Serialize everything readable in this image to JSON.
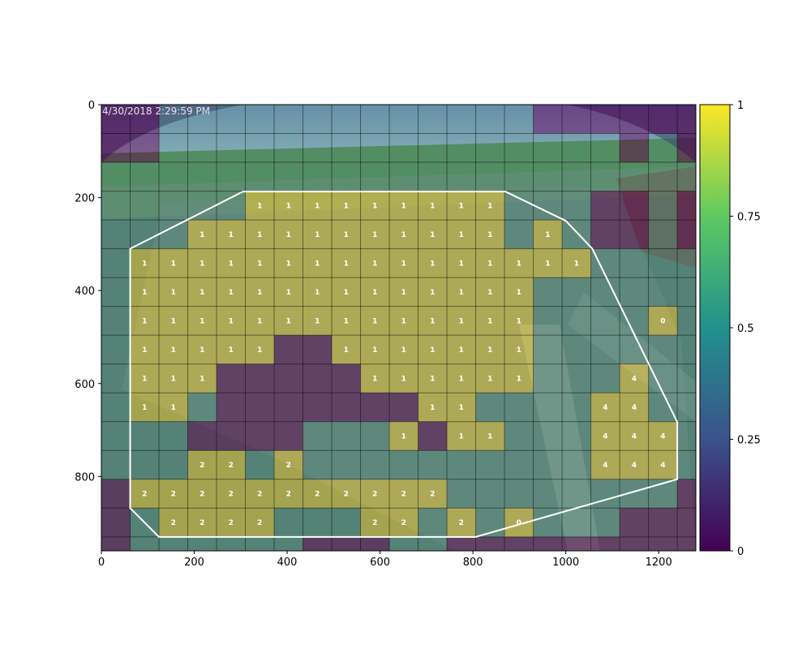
{
  "overlay_text": {
    "timestamp": "4/30/2018 2:29:59 PM"
  },
  "colors": {
    "viridis_low": "#440154",
    "viridis_mid": "#21918c",
    "viridis_high": "#fde725",
    "roi_outline": "#ffffff",
    "grid_line": "#000000",
    "cell_label": "#ffffff"
  },
  "chart_data": {
    "type": "heatmap",
    "description_source": "grid heatmap overlaid on traffic camera image",
    "title": "",
    "xlabel": "",
    "ylabel": "",
    "xlim": [
      0,
      1280
    ],
    "ylim": [
      960,
      0
    ],
    "x_ticks": [
      0,
      200,
      400,
      600,
      800,
      1000,
      1200
    ],
    "y_ticks": [
      0,
      200,
      400,
      600,
      800
    ],
    "grid": {
      "cell_width": 62,
      "cell_height": 62,
      "columns": 21,
      "rows": 16
    },
    "colormap": "viridis",
    "colorbar": {
      "vmin": 0,
      "vmax": 1,
      "ticks": [
        0,
        0.25,
        0.5,
        0.75,
        1
      ],
      "tick_labels": [
        "0",
        "0.25",
        "0.5",
        "0.75",
        "1"
      ]
    },
    "roi_polygon": [
      [
        62,
        310
      ],
      [
        305,
        187
      ],
      [
        870,
        187
      ],
      [
        1000,
        250
      ],
      [
        1057,
        310
      ],
      [
        1240,
        683
      ],
      [
        1240,
        806
      ],
      [
        806,
        930
      ],
      [
        124,
        930
      ],
      [
        62,
        868
      ]
    ],
    "cell_labels": [
      {
        "x": 341,
        "y": 217,
        "text": "1"
      },
      {
        "x": 403,
        "y": 217,
        "text": "1"
      },
      {
        "x": 465,
        "y": 217,
        "text": "1"
      },
      {
        "x": 527,
        "y": 217,
        "text": "1"
      },
      {
        "x": 589,
        "y": 217,
        "text": "1"
      },
      {
        "x": 651,
        "y": 217,
        "text": "1"
      },
      {
        "x": 713,
        "y": 217,
        "text": "1"
      },
      {
        "x": 775,
        "y": 217,
        "text": "1"
      },
      {
        "x": 837,
        "y": 217,
        "text": "1"
      },
      {
        "x": 217,
        "y": 279,
        "text": "1"
      },
      {
        "x": 279,
        "y": 279,
        "text": "1"
      },
      {
        "x": 341,
        "y": 279,
        "text": "1"
      },
      {
        "x": 403,
        "y": 279,
        "text": "1"
      },
      {
        "x": 465,
        "y": 279,
        "text": "1"
      },
      {
        "x": 527,
        "y": 279,
        "text": "1"
      },
      {
        "x": 589,
        "y": 279,
        "text": "1"
      },
      {
        "x": 651,
        "y": 279,
        "text": "1"
      },
      {
        "x": 713,
        "y": 279,
        "text": "1"
      },
      {
        "x": 775,
        "y": 279,
        "text": "1"
      },
      {
        "x": 837,
        "y": 279,
        "text": "1"
      },
      {
        "x": 961,
        "y": 279,
        "text": "1"
      },
      {
        "x": 93,
        "y": 341,
        "text": "1"
      },
      {
        "x": 155,
        "y": 341,
        "text": "1"
      },
      {
        "x": 217,
        "y": 341,
        "text": "1"
      },
      {
        "x": 279,
        "y": 341,
        "text": "1"
      },
      {
        "x": 341,
        "y": 341,
        "text": "1"
      },
      {
        "x": 403,
        "y": 341,
        "text": "1"
      },
      {
        "x": 465,
        "y": 341,
        "text": "1"
      },
      {
        "x": 527,
        "y": 341,
        "text": "1"
      },
      {
        "x": 589,
        "y": 341,
        "text": "1"
      },
      {
        "x": 651,
        "y": 341,
        "text": "1"
      },
      {
        "x": 713,
        "y": 341,
        "text": "1"
      },
      {
        "x": 775,
        "y": 341,
        "text": "1"
      },
      {
        "x": 837,
        "y": 341,
        "text": "1"
      },
      {
        "x": 899,
        "y": 341,
        "text": "1"
      },
      {
        "x": 961,
        "y": 341,
        "text": "1"
      },
      {
        "x": 1023,
        "y": 341,
        "text": "1"
      },
      {
        "x": 93,
        "y": 403,
        "text": "1"
      },
      {
        "x": 155,
        "y": 403,
        "text": "1"
      },
      {
        "x": 217,
        "y": 403,
        "text": "1"
      },
      {
        "x": 279,
        "y": 403,
        "text": "1"
      },
      {
        "x": 341,
        "y": 403,
        "text": "1"
      },
      {
        "x": 403,
        "y": 403,
        "text": "1"
      },
      {
        "x": 465,
        "y": 403,
        "text": "1"
      },
      {
        "x": 527,
        "y": 403,
        "text": "1"
      },
      {
        "x": 589,
        "y": 403,
        "text": "1"
      },
      {
        "x": 651,
        "y": 403,
        "text": "1"
      },
      {
        "x": 713,
        "y": 403,
        "text": "1"
      },
      {
        "x": 775,
        "y": 403,
        "text": "1"
      },
      {
        "x": 837,
        "y": 403,
        "text": "1"
      },
      {
        "x": 899,
        "y": 403,
        "text": "1"
      },
      {
        "x": 93,
        "y": 465,
        "text": "1"
      },
      {
        "x": 155,
        "y": 465,
        "text": "1"
      },
      {
        "x": 217,
        "y": 465,
        "text": "1"
      },
      {
        "x": 279,
        "y": 465,
        "text": "1"
      },
      {
        "x": 341,
        "y": 465,
        "text": "1"
      },
      {
        "x": 403,
        "y": 465,
        "text": "1"
      },
      {
        "x": 465,
        "y": 465,
        "text": "1"
      },
      {
        "x": 527,
        "y": 465,
        "text": "1"
      },
      {
        "x": 589,
        "y": 465,
        "text": "1"
      },
      {
        "x": 651,
        "y": 465,
        "text": "1"
      },
      {
        "x": 713,
        "y": 465,
        "text": "1"
      },
      {
        "x": 775,
        "y": 465,
        "text": "1"
      },
      {
        "x": 837,
        "y": 465,
        "text": "1"
      },
      {
        "x": 899,
        "y": 465,
        "text": "1"
      },
      {
        "x": 1209,
        "y": 465,
        "text": "0"
      },
      {
        "x": 93,
        "y": 527,
        "text": "1"
      },
      {
        "x": 155,
        "y": 527,
        "text": "1"
      },
      {
        "x": 217,
        "y": 527,
        "text": "1"
      },
      {
        "x": 279,
        "y": 527,
        "text": "1"
      },
      {
        "x": 341,
        "y": 527,
        "text": "1"
      },
      {
        "x": 527,
        "y": 527,
        "text": "1"
      },
      {
        "x": 589,
        "y": 527,
        "text": "1"
      },
      {
        "x": 651,
        "y": 527,
        "text": "1"
      },
      {
        "x": 713,
        "y": 527,
        "text": "1"
      },
      {
        "x": 775,
        "y": 527,
        "text": "1"
      },
      {
        "x": 837,
        "y": 527,
        "text": "1"
      },
      {
        "x": 899,
        "y": 527,
        "text": "1"
      },
      {
        "x": 93,
        "y": 589,
        "text": "1"
      },
      {
        "x": 155,
        "y": 589,
        "text": "1"
      },
      {
        "x": 217,
        "y": 589,
        "text": "1"
      },
      {
        "x": 589,
        "y": 589,
        "text": "1"
      },
      {
        "x": 651,
        "y": 589,
        "text": "1"
      },
      {
        "x": 713,
        "y": 589,
        "text": "1"
      },
      {
        "x": 775,
        "y": 589,
        "text": "1"
      },
      {
        "x": 837,
        "y": 589,
        "text": "1"
      },
      {
        "x": 899,
        "y": 589,
        "text": "1"
      },
      {
        "x": 1147,
        "y": 589,
        "text": "4"
      },
      {
        "x": 93,
        "y": 651,
        "text": "1"
      },
      {
        "x": 155,
        "y": 651,
        "text": "1"
      },
      {
        "x": 713,
        "y": 651,
        "text": "1"
      },
      {
        "x": 775,
        "y": 651,
        "text": "1"
      },
      {
        "x": 1085,
        "y": 651,
        "text": "4"
      },
      {
        "x": 1147,
        "y": 651,
        "text": "4"
      },
      {
        "x": 651,
        "y": 713,
        "text": "1"
      },
      {
        "x": 775,
        "y": 713,
        "text": "1"
      },
      {
        "x": 837,
        "y": 713,
        "text": "1"
      },
      {
        "x": 1085,
        "y": 713,
        "text": "4"
      },
      {
        "x": 1147,
        "y": 713,
        "text": "4"
      },
      {
        "x": 1209,
        "y": 713,
        "text": "4"
      },
      {
        "x": 217,
        "y": 775,
        "text": "2"
      },
      {
        "x": 279,
        "y": 775,
        "text": "2"
      },
      {
        "x": 403,
        "y": 775,
        "text": "2"
      },
      {
        "x": 1085,
        "y": 775,
        "text": "4"
      },
      {
        "x": 1147,
        "y": 775,
        "text": "4"
      },
      {
        "x": 1209,
        "y": 775,
        "text": "4"
      },
      {
        "x": 93,
        "y": 837,
        "text": "2"
      },
      {
        "x": 155,
        "y": 837,
        "text": "2"
      },
      {
        "x": 217,
        "y": 837,
        "text": "2"
      },
      {
        "x": 279,
        "y": 837,
        "text": "2"
      },
      {
        "x": 341,
        "y": 837,
        "text": "2"
      },
      {
        "x": 403,
        "y": 837,
        "text": "2"
      },
      {
        "x": 465,
        "y": 837,
        "text": "2"
      },
      {
        "x": 527,
        "y": 837,
        "text": "2"
      },
      {
        "x": 589,
        "y": 837,
        "text": "2"
      },
      {
        "x": 651,
        "y": 837,
        "text": "2"
      },
      {
        "x": 713,
        "y": 837,
        "text": "2"
      },
      {
        "x": 155,
        "y": 899,
        "text": "2"
      },
      {
        "x": 217,
        "y": 899,
        "text": "2"
      },
      {
        "x": 279,
        "y": 899,
        "text": "2"
      },
      {
        "x": 341,
        "y": 899,
        "text": "2"
      },
      {
        "x": 589,
        "y": 899,
        "text": "2"
      },
      {
        "x": 651,
        "y": 899,
        "text": "2"
      },
      {
        "x": 775,
        "y": 899,
        "text": "2"
      },
      {
        "x": 899,
        "y": 899,
        "text": "0"
      }
    ],
    "low_cells": [
      {
        "col": 0,
        "row": 0
      },
      {
        "col": 1,
        "row": 0
      },
      {
        "col": 15,
        "row": 0
      },
      {
        "col": 16,
        "row": 0
      },
      {
        "col": 17,
        "row": 0
      },
      {
        "col": 18,
        "row": 0
      },
      {
        "col": 19,
        "row": 0
      },
      {
        "col": 20,
        "row": 0
      },
      {
        "col": 0,
        "row": 1
      },
      {
        "col": 1,
        "row": 1
      },
      {
        "col": 18,
        "row": 1
      },
      {
        "col": 20,
        "row": 1
      },
      {
        "col": 17,
        "row": 3
      },
      {
        "col": 18,
        "row": 3
      },
      {
        "col": 20,
        "row": 3
      },
      {
        "col": 17,
        "row": 4
      },
      {
        "col": 18,
        "row": 4
      },
      {
        "col": 20,
        "row": 4
      },
      {
        "col": 6,
        "row": 8
      },
      {
        "col": 7,
        "row": 8
      },
      {
        "col": 8,
        "row": 8
      },
      {
        "col": 9,
        "row": 8
      },
      {
        "col": 10,
        "row": 8
      },
      {
        "col": 11,
        "row": 8
      },
      {
        "col": 4,
        "row": 9
      },
      {
        "col": 5,
        "row": 9
      },
      {
        "col": 6,
        "row": 9
      },
      {
        "col": 7,
        "row": 9
      },
      {
        "col": 8,
        "row": 9
      },
      {
        "col": 4,
        "row": 10
      },
      {
        "col": 5,
        "row": 10
      },
      {
        "col": 6,
        "row": 10
      },
      {
        "col": 7,
        "row": 10
      },
      {
        "col": 8,
        "row": 10
      },
      {
        "col": 9,
        "row": 10
      },
      {
        "col": 10,
        "row": 10
      },
      {
        "col": 3,
        "row": 11
      },
      {
        "col": 4,
        "row": 11
      },
      {
        "col": 5,
        "row": 11
      },
      {
        "col": 6,
        "row": 11
      },
      {
        "col": 11,
        "row": 11
      },
      {
        "col": 0,
        "row": 13
      },
      {
        "col": 20,
        "row": 13
      },
      {
        "col": 0,
        "row": 14
      },
      {
        "col": 18,
        "row": 14
      },
      {
        "col": 19,
        "row": 14
      },
      {
        "col": 20,
        "row": 14
      },
      {
        "col": 0,
        "row": 15
      },
      {
        "col": 7,
        "row": 15
      },
      {
        "col": 8,
        "row": 15
      },
      {
        "col": 9,
        "row": 15
      },
      {
        "col": 12,
        "row": 15
      },
      {
        "col": 13,
        "row": 15
      },
      {
        "col": 14,
        "row": 15
      },
      {
        "col": 15,
        "row": 15
      },
      {
        "col": 16,
        "row": 15
      },
      {
        "col": 17,
        "row": 15
      },
      {
        "col": 18,
        "row": 15
      },
      {
        "col": 19,
        "row": 15
      },
      {
        "col": 20,
        "row": 15
      }
    ]
  }
}
